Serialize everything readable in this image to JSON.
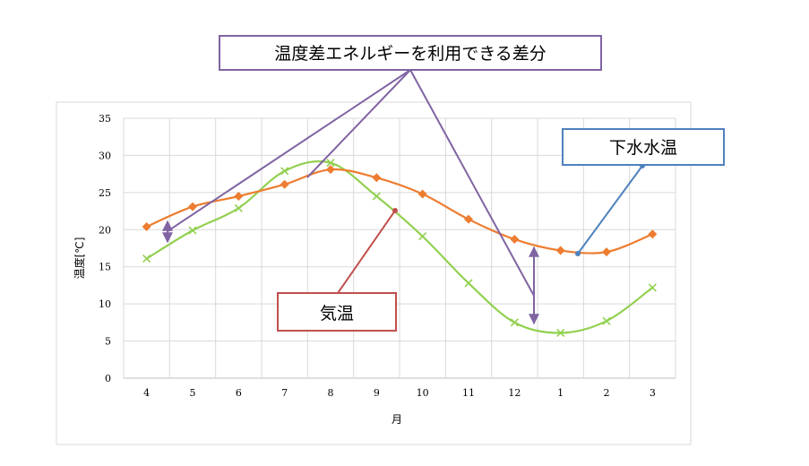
{
  "chart_data": {
    "type": "line",
    "xlabel": "月",
    "ylabel": "温度[℃]",
    "ylim": [
      0,
      35
    ],
    "yticks": [
      0,
      5,
      10,
      15,
      20,
      25,
      30,
      35
    ],
    "categories": [
      "4",
      "5",
      "6",
      "7",
      "8",
      "9",
      "10",
      "11",
      "12",
      "1",
      "2",
      "3"
    ],
    "grid": true,
    "series": [
      {
        "key": "sewage",
        "values": [
          20.4,
          23.1,
          24.5,
          26.1,
          28.1,
          27.0,
          24.8,
          21.4,
          18.7,
          17.2,
          17.0,
          19.4
        ],
        "color": "#ED7D31",
        "marker": "diamond"
      },
      {
        "key": "air",
        "values": [
          16.1,
          19.9,
          22.9,
          27.9,
          29.0,
          24.5,
          19.1,
          12.8,
          7.5,
          6.1,
          7.7,
          12.2
        ],
        "color": "#92D050",
        "marker": "x"
      }
    ],
    "annotations": {
      "energy": {
        "text": "温度差エネルギーを利用できる差分",
        "color": "#8064A2"
      },
      "sewage": {
        "text": "下水水温",
        "color": "#4F81BD"
      },
      "air": {
        "text": "気温",
        "color": "#C0504D"
      }
    }
  }
}
